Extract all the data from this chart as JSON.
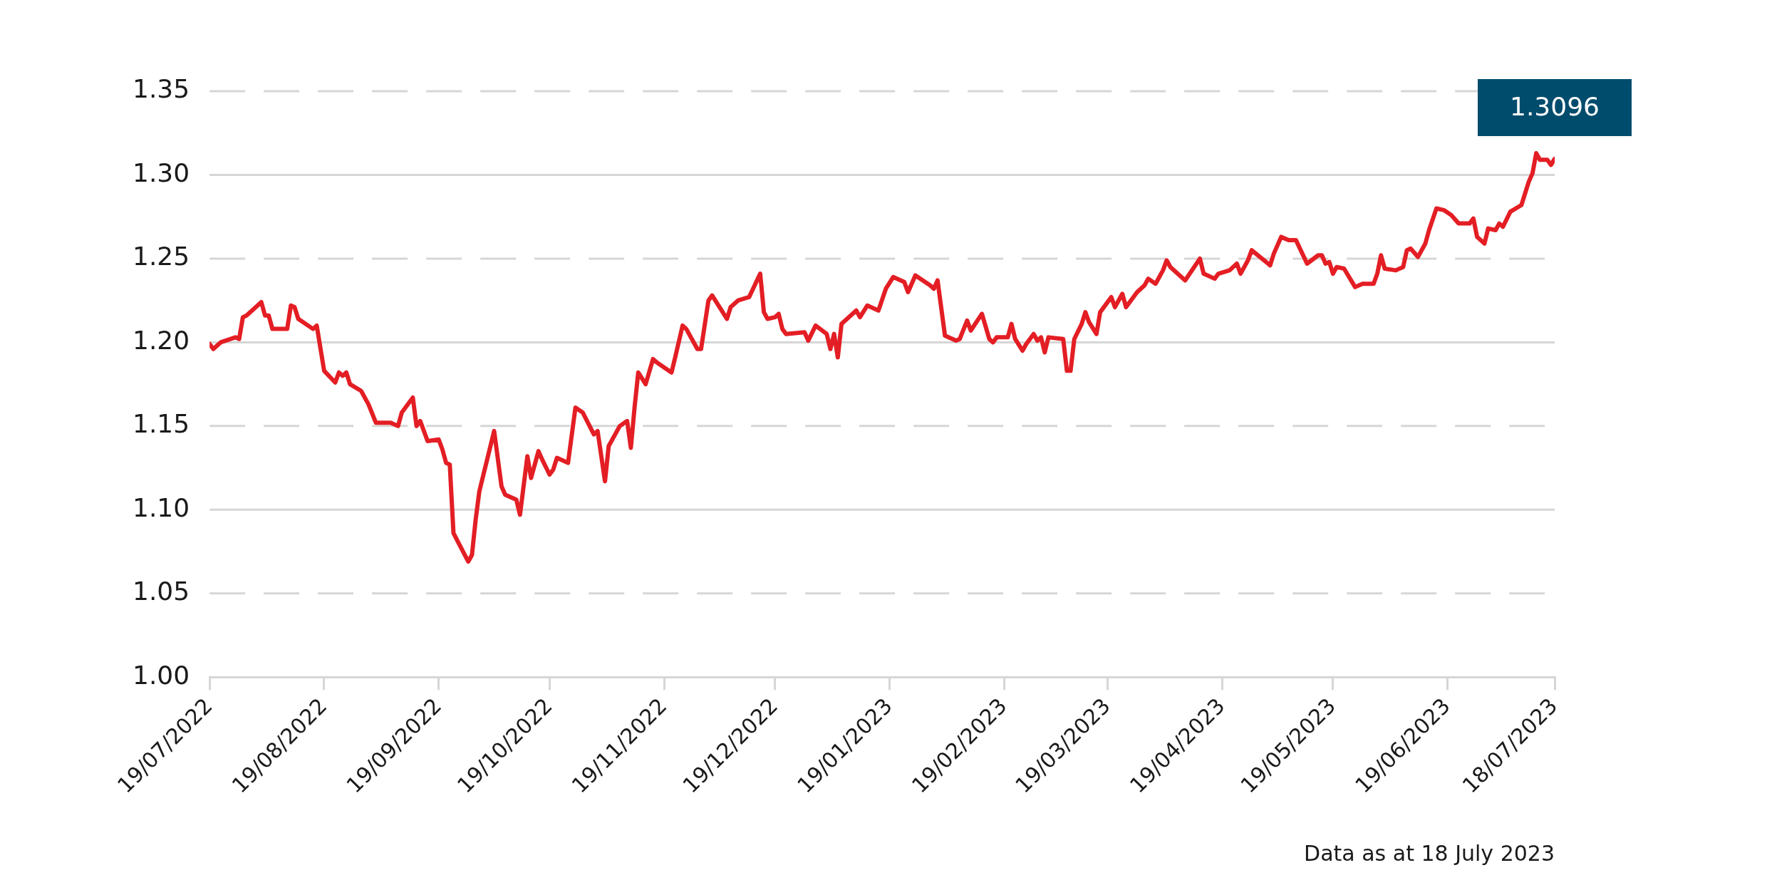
{
  "chart_data": {
    "type": "line",
    "x": [
      "2022-07-19",
      "2022-07-20",
      "2022-07-22",
      "2022-07-26",
      "2022-07-27",
      "2022-07-28",
      "2022-07-29",
      "2022-08-02",
      "2022-08-03",
      "2022-08-04",
      "2022-08-05",
      "2022-08-09",
      "2022-08-10",
      "2022-08-11",
      "2022-08-12",
      "2022-08-16",
      "2022-08-17",
      "2022-08-19",
      "2022-08-22",
      "2022-08-23",
      "2022-08-24",
      "2022-08-25",
      "2022-08-26",
      "2022-08-29",
      "2022-08-31",
      "2022-09-02",
      "2022-09-06",
      "2022-09-08",
      "2022-09-09",
      "2022-09-12",
      "2022-09-13",
      "2022-09-14",
      "2022-09-16",
      "2022-09-19",
      "2022-09-20",
      "2022-09-21",
      "2022-09-22",
      "2022-09-23",
      "2022-09-27",
      "2022-09-28",
      "2022-09-29",
      "2022-09-30",
      "2022-10-04",
      "2022-10-06",
      "2022-10-07",
      "2022-10-10",
      "2022-10-11",
      "2022-10-13",
      "2022-10-14",
      "2022-10-16",
      "2022-10-17",
      "2022-10-19",
      "2022-10-20",
      "2022-10-21",
      "2022-10-24",
      "2022-10-26",
      "2022-10-28",
      "2022-10-31",
      "2022-11-01",
      "2022-11-03",
      "2022-11-04",
      "2022-11-07",
      "2022-11-09",
      "2022-11-10",
      "2022-11-11",
      "2022-11-12",
      "2022-11-14",
      "2022-11-16",
      "2022-11-17",
      "2022-11-21",
      "2022-11-22",
      "2022-11-24",
      "2022-11-25",
      "2022-11-28",
      "2022-11-29",
      "2022-12-01",
      "2022-12-02",
      "2022-12-06",
      "2022-12-07",
      "2022-12-09",
      "2022-12-12",
      "2022-12-15",
      "2022-12-16",
      "2022-12-17",
      "2022-12-19",
      "2022-12-20",
      "2022-12-21",
      "2022-12-22",
      "2022-12-27",
      "2022-12-28",
      "2022-12-30",
      "2023-01-02",
      "2023-01-03",
      "2023-01-04",
      "2023-01-05",
      "2023-01-06",
      "2023-01-10",
      "2023-01-11",
      "2023-01-13",
      "2023-01-16",
      "2023-01-18",
      "2023-01-20",
      "2023-01-23",
      "2023-01-24",
      "2023-01-26",
      "2023-01-28",
      "2023-01-30",
      "2023-01-31",
      "2023-02-01",
      "2023-02-03",
      "2023-02-06",
      "2023-02-07",
      "2023-02-09",
      "2023-02-10",
      "2023-02-13",
      "2023-02-15",
      "2023-02-16",
      "2023-02-17",
      "2023-02-20",
      "2023-02-21",
      "2023-02-22",
      "2023-02-24",
      "2023-02-25",
      "2023-02-27",
      "2023-02-28",
      "2023-03-01",
      "2023-03-02",
      "2023-03-03",
      "2023-03-07",
      "2023-03-08",
      "2023-03-09",
      "2023-03-10",
      "2023-03-12",
      "2023-03-13",
      "2023-03-14",
      "2023-03-16",
      "2023-03-17",
      "2023-03-20",
      "2023-03-21",
      "2023-03-23",
      "2023-03-24",
      "2023-03-27",
      "2023-03-29",
      "2023-03-30",
      "2023-04-01",
      "2023-04-03",
      "2023-04-04",
      "2023-04-05",
      "2023-04-09",
      "2023-04-13",
      "2023-04-14",
      "2023-04-17",
      "2023-04-18",
      "2023-04-21",
      "2023-04-23",
      "2023-04-24",
      "2023-04-26",
      "2023-04-27",
      "2023-05-02",
      "2023-05-03",
      "2023-05-05",
      "2023-05-07",
      "2023-05-09",
      "2023-05-12",
      "2023-05-15",
      "2023-05-16",
      "2023-05-17",
      "2023-05-18",
      "2023-05-19",
      "2023-05-20",
      "2023-05-22",
      "2023-05-25",
      "2023-05-27",
      "2023-05-30",
      "2023-05-31",
      "2023-06-01",
      "2023-06-02",
      "2023-06-05",
      "2023-06-07",
      "2023-06-08",
      "2023-06-09",
      "2023-06-11",
      "2023-06-13",
      "2023-06-14",
      "2023-06-16",
      "2023-06-18",
      "2023-06-20",
      "2023-06-22",
      "2023-06-25",
      "2023-06-26",
      "2023-06-27",
      "2023-06-29",
      "2023-06-30",
      "2023-07-02",
      "2023-07-03",
      "2023-07-04",
      "2023-07-06",
      "2023-07-09",
      "2023-07-11",
      "2023-07-12",
      "2023-07-13",
      "2023-07-14",
      "2023-07-16",
      "2023-07-17",
      "2023-07-18"
    ],
    "series": [
      {
        "color": "#e31e24",
        "values": [
          1.199,
          1.196,
          1.2,
          1.203,
          1.202,
          1.215,
          1.216,
          1.224,
          1.216,
          1.216,
          1.208,
          1.208,
          1.222,
          1.221,
          1.214,
          1.208,
          1.21,
          1.183,
          1.176,
          1.182,
          1.18,
          1.182,
          1.175,
          1.171,
          1.163,
          1.152,
          1.152,
          1.15,
          1.158,
          1.167,
          1.15,
          1.153,
          1.141,
          1.142,
          1.136,
          1.128,
          1.127,
          1.086,
          1.069,
          1.073,
          1.094,
          1.111,
          1.147,
          1.114,
          1.109,
          1.106,
          1.097,
          1.132,
          1.119,
          1.135,
          1.13,
          1.121,
          1.124,
          1.131,
          1.128,
          1.161,
          1.158,
          1.145,
          1.147,
          1.117,
          1.138,
          1.15,
          1.153,
          1.137,
          1.161,
          1.182,
          1.175,
          1.19,
          1.188,
          1.182,
          1.191,
          1.21,
          1.208,
          1.196,
          1.196,
          1.225,
          1.228,
          1.214,
          1.221,
          1.225,
          1.227,
          1.241,
          1.218,
          1.214,
          1.215,
          1.217,
          1.208,
          1.205,
          1.206,
          1.201,
          1.21,
          1.205,
          1.196,
          1.205,
          1.191,
          1.211,
          1.219,
          1.215,
          1.222,
          1.219,
          1.232,
          1.239,
          1.236,
          1.23,
          1.24,
          1.237,
          1.234,
          1.232,
          1.237,
          1.204,
          1.201,
          1.202,
          1.213,
          1.207,
          1.217,
          1.202,
          1.2,
          1.203,
          1.203,
          1.211,
          1.202,
          1.195,
          1.199,
          1.205,
          1.201,
          1.203,
          1.194,
          1.203,
          1.202,
          1.183,
          1.183,
          1.202,
          1.211,
          1.218,
          1.212,
          1.205,
          1.218,
          1.227,
          1.221,
          1.229,
          1.221,
          1.23,
          1.234,
          1.238,
          1.235,
          1.243,
          1.249,
          1.245,
          1.237,
          1.25,
          1.241,
          1.238,
          1.241,
          1.243,
          1.247,
          1.241,
          1.249,
          1.255,
          1.246,
          1.253,
          1.263,
          1.261,
          1.261,
          1.247,
          1.252,
          1.252,
          1.247,
          1.248,
          1.241,
          1.245,
          1.244,
          1.233,
          1.235,
          1.235,
          1.241,
          1.252,
          1.244,
          1.243,
          1.245,
          1.255,
          1.256,
          1.251,
          1.259,
          1.267,
          1.28,
          1.279,
          1.276,
          1.271,
          1.271,
          1.274,
          1.263,
          1.259,
          1.268,
          1.267,
          1.271,
          1.269,
          1.278,
          1.282,
          1.296,
          1.301,
          1.313,
          1.309,
          1.309,
          1.306,
          1.3096
        ]
      }
    ],
    "xlim": [
      "2022-07-19",
      "2023-07-18"
    ],
    "xticks": [
      {
        "value": "2022-07-19",
        "label": "19/07/2022"
      },
      {
        "value": "2022-08-19",
        "label": "19/08/2022"
      },
      {
        "value": "2022-09-19",
        "label": "19/09/2022"
      },
      {
        "value": "2022-10-19",
        "label": "19/10/2022"
      },
      {
        "value": "2022-11-19",
        "label": "19/11/2022"
      },
      {
        "value": "2022-12-19",
        "label": "19/12/2022"
      },
      {
        "value": "2023-01-19",
        "label": "19/01/2023"
      },
      {
        "value": "2023-02-19",
        "label": "19/02/2023"
      },
      {
        "value": "2023-03-19",
        "label": "19/03/2023"
      },
      {
        "value": "2023-04-19",
        "label": "19/04/2023"
      },
      {
        "value": "2023-05-19",
        "label": "19/05/2023"
      },
      {
        "value": "2023-06-19",
        "label": "19/06/2023"
      },
      {
        "value": "2023-07-18",
        "label": "18/07/2023"
      }
    ],
    "ylim": [
      1.0,
      1.35
    ],
    "yticks": [
      {
        "value": 1.0,
        "label": "1.00"
      },
      {
        "value": 1.05,
        "label": "1.05"
      },
      {
        "value": 1.1,
        "label": "1.10"
      },
      {
        "value": 1.15,
        "label": "1.15"
      },
      {
        "value": 1.2,
        "label": "1.20"
      },
      {
        "value": 1.25,
        "label": "1.25"
      },
      {
        "value": 1.3,
        "label": "1.30"
      },
      {
        "value": 1.35,
        "label": "1.35"
      }
    ],
    "grid": "y",
    "marker": "none",
    "line_style": "solid",
    "legend": false,
    "annotations": [
      {
        "text": "1.3096",
        "x": "2023-07-18",
        "y": 1.3096
      },
      "Data as at 18 July 2023"
    ]
  }
}
